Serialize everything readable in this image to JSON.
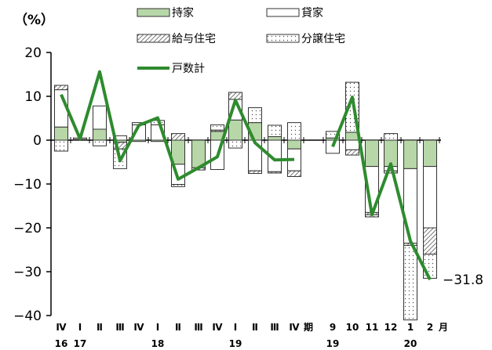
{
  "chart_data": {
    "type": "bar",
    "subtype": "stacked bar with line",
    "unit_label": "（%）",
    "ylim": [
      -40,
      20
    ],
    "y_ticks": [
      20,
      10,
      0,
      -10,
      -20,
      -30,
      -40
    ],
    "legend": {
      "placement": "top",
      "entries": [
        {
          "key": "owner",
          "label": "持家"
        },
        {
          "key": "rent",
          "label": "貸家"
        },
        {
          "key": "issued",
          "label": "給与住宅"
        },
        {
          "key": "sale",
          "label": "分譲住宅"
        },
        {
          "key": "total",
          "label": "戸数計"
        }
      ]
    },
    "colors": {
      "owner": "#b7d7a8",
      "rent": "#ffffff",
      "issued": "#ffffff",
      "sale": "#ffffff",
      "total": "#2e8b2e",
      "stroke": "#333333"
    },
    "categories": [
      {
        "label": "Ⅳ",
        "year": "16"
      },
      {
        "label": "Ⅰ",
        "year": "17"
      },
      {
        "label": "Ⅱ",
        "year": ""
      },
      {
        "label": "Ⅲ",
        "year": ""
      },
      {
        "label": "Ⅳ",
        "year": ""
      },
      {
        "label": "Ⅰ",
        "year": "18"
      },
      {
        "label": "Ⅱ",
        "year": ""
      },
      {
        "label": "Ⅲ",
        "year": ""
      },
      {
        "label": "Ⅳ",
        "year": ""
      },
      {
        "label": "Ⅰ",
        "year": "19"
      },
      {
        "label": "Ⅱ",
        "year": ""
      },
      {
        "label": "Ⅲ",
        "year": ""
      },
      {
        "label": "Ⅳ",
        "year": ""
      },
      {
        "label": "9",
        "year": "19"
      },
      {
        "label": "10",
        "year": ""
      },
      {
        "label": "11",
        "year": ""
      },
      {
        "label": "12",
        "year": ""
      },
      {
        "label": "1",
        "year": "20"
      },
      {
        "label": "2",
        "year": ""
      }
    ],
    "period_suffix": "期",
    "month_suffix": "月",
    "series": [
      {
        "key": "owner",
        "name": "持家",
        "values": [
          3.0,
          0.2,
          2.5,
          -0.5,
          -0.3,
          -0.3,
          -5.5,
          -6.3,
          2.0,
          4.6,
          4.0,
          0.8,
          -2.0,
          0.5,
          1.8,
          -6.0,
          -6.0,
          -6.5,
          -6.0
        ]
      },
      {
        "key": "rent",
        "name": "貸家",
        "values": [
          8.5,
          0.3,
          5.3,
          1.0,
          3.5,
          3.5,
          -4.6,
          0.0,
          -6.7,
          4.7,
          -7.0,
          -7.2,
          -5.0,
          -3.0,
          -2.2,
          -10.5,
          -1.0,
          -17.0,
          -14.0
        ]
      },
      {
        "key": "issued",
        "name": "給与住宅",
        "values": [
          1.0,
          0.0,
          0.0,
          -1.5,
          0.0,
          0.0,
          1.5,
          -0.5,
          0.3,
          1.6,
          -0.6,
          -0.3,
          -1.3,
          0.0,
          -1.2,
          -0.5,
          -0.5,
          -0.5,
          -6.0
        ]
      },
      {
        "key": "sale",
        "name": "分譲住宅",
        "values": [
          -2.5,
          0.0,
          -1.3,
          -4.5,
          0.5,
          1.0,
          -0.5,
          0.0,
          1.2,
          -1.8,
          3.4,
          2.6,
          4.0,
          1.5,
          11.4,
          -0.5,
          1.5,
          -17.0,
          -5.5
        ]
      },
      {
        "key": "total",
        "name": "戸数計",
        "values": [
          10.4,
          0.3,
          15.6,
          -4.7,
          3.4,
          5.1,
          -8.9,
          -6.3,
          -3.8,
          9.1,
          -0.6,
          -4.5,
          -4.4,
          -1.5,
          9.8,
          -17.0,
          -5.4,
          -23.0,
          -31.8
        ]
      }
    ],
    "line_gap_after_index": 12,
    "annotation": {
      "text": "−31.8",
      "category_index": 18
    }
  }
}
